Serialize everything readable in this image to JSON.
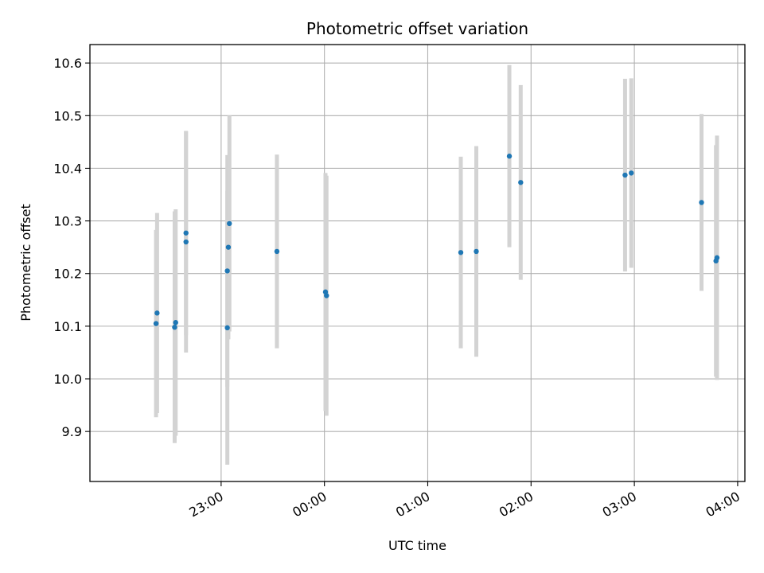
{
  "chart_data": {
    "type": "scatter",
    "title": "Photometric offset variation",
    "xlabel": "UTC time",
    "ylabel": "Photometric offset",
    "x_unit": "UTC time (hours after 00:00; negative = previous day)",
    "xlim": [
      -2.27,
      4.07
    ],
    "ylim": [
      9.805,
      10.635
    ],
    "x_ticks": [
      {
        "value": -1.0,
        "label": "23:00"
      },
      {
        "value": 0.0,
        "label": "00:00"
      },
      {
        "value": 1.0,
        "label": "01:00"
      },
      {
        "value": 2.0,
        "label": "02:00"
      },
      {
        "value": 3.0,
        "label": "03:00"
      },
      {
        "value": 4.0,
        "label": "04:00"
      }
    ],
    "y_ticks": [
      {
        "value": 9.9,
        "label": "9.9"
      },
      {
        "value": 10.0,
        "label": "10.0"
      },
      {
        "value": 10.1,
        "label": "10.1"
      },
      {
        "value": 10.2,
        "label": "10.2"
      },
      {
        "value": 10.3,
        "label": "10.3"
      },
      {
        "value": 10.4,
        "label": "10.4"
      },
      {
        "value": 10.5,
        "label": "10.5"
      },
      {
        "value": 10.6,
        "label": "10.6"
      }
    ],
    "grid": true,
    "colors": {
      "points": "#1f77b4",
      "error_bars": "#d3d3d3",
      "grid": "#b0b0b0",
      "axes": "#000000"
    },
    "points": [
      {
        "x": -1.63,
        "y": 10.105,
        "yerr": 0.178
      },
      {
        "x": -1.62,
        "y": 10.125,
        "yerr": 0.19
      },
      {
        "x": -1.45,
        "y": 10.098,
        "yerr": 0.22
      },
      {
        "x": -1.44,
        "y": 10.107,
        "yerr": 0.215
      },
      {
        "x": -1.34,
        "y": 10.277,
        "yerr": 0.194
      },
      {
        "x": -1.34,
        "y": 10.26,
        "yerr": 0.21
      },
      {
        "x": -0.94,
        "y": 10.097,
        "yerr": 0.26
      },
      {
        "x": -0.94,
        "y": 10.205,
        "yerr": 0.22
      },
      {
        "x": -0.93,
        "y": 10.25,
        "yerr": 0.175
      },
      {
        "x": -0.92,
        "y": 10.295,
        "yerr": 0.205
      },
      {
        "x": -0.46,
        "y": 10.242,
        "yerr": 0.184
      },
      {
        "x": 0.01,
        "y": 10.165,
        "yerr": 0.226
      },
      {
        "x": 0.02,
        "y": 10.158,
        "yerr": 0.228
      },
      {
        "x": 1.32,
        "y": 10.24,
        "yerr": 0.182
      },
      {
        "x": 1.47,
        "y": 10.242,
        "yerr": 0.2
      },
      {
        "x": 1.79,
        "y": 10.423,
        "yerr": 0.173
      },
      {
        "x": 1.9,
        "y": 10.373,
        "yerr": 0.185
      },
      {
        "x": 2.91,
        "y": 10.387,
        "yerr": 0.183
      },
      {
        "x": 2.97,
        "y": 10.391,
        "yerr": 0.18
      },
      {
        "x": 3.65,
        "y": 10.335,
        "yerr": 0.168
      },
      {
        "x": 3.79,
        "y": 10.224,
        "yerr": 0.22
      },
      {
        "x": 3.8,
        "y": 10.23,
        "yerr": 0.232
      }
    ]
  }
}
